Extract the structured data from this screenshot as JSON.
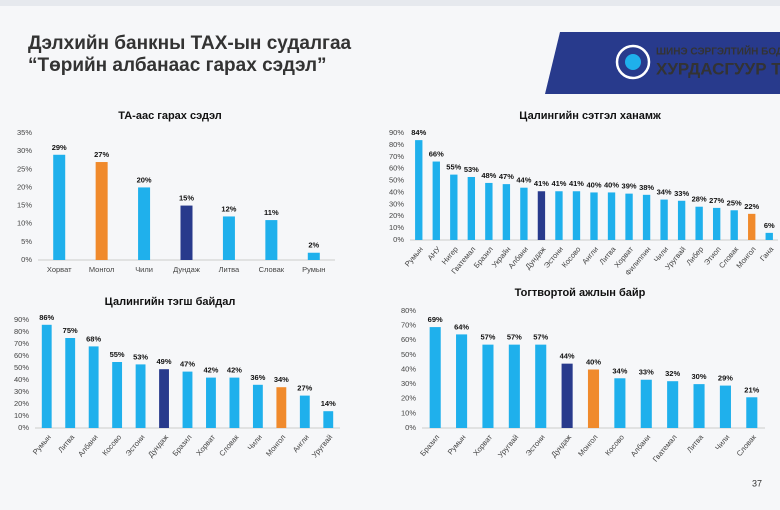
{
  "header": {
    "title": "Дэлхийн банкны ТАХ-ын судалгаа",
    "subtitle": "“Төрийн албанаас гарах сэдэл”",
    "logo_top": "ШИНЭ СЭРГЭЛТИЙН БОДЛО",
    "logo_bottom": "ХУРДАСГУУР ТО"
  },
  "page_number": "37",
  "chart_data": [
    {
      "type": "bar",
      "title": "ТА-аас гарах сэдэл",
      "categories": [
        "Хорват",
        "Монгол",
        "Чили",
        "Дундаж",
        "Литва",
        "Словак",
        "Румын"
      ],
      "values": [
        29,
        27,
        20,
        15,
        12,
        11,
        2
      ],
      "value_labels": [
        "29%",
        "27%",
        "20%",
        "15%",
        "12%",
        "11%",
        "2%"
      ],
      "colors": [
        "#1fb0ec",
        "#f08a2c",
        "#1fb0ec",
        "#283a8c",
        "#1fb0ec",
        "#1fb0ec",
        "#1fb0ec"
      ],
      "ylim": [
        0,
        35
      ],
      "yticks": [
        {
          "value": 0,
          "label": "0%"
        },
        {
          "value": 5,
          "label": "5%"
        },
        {
          "value": 10,
          "label": "10%"
        },
        {
          "value": 15,
          "label": "15%"
        },
        {
          "value": 20,
          "label": "20%"
        },
        {
          "value": 25,
          "label": "25%"
        },
        {
          "value": 30,
          "label": "30%"
        },
        {
          "value": 35,
          "label": "35%"
        }
      ]
    },
    {
      "type": "bar",
      "title": "Цалингийн сэтгэл ханамж",
      "categories": [
        "Румын",
        "АНУ",
        "Нигер",
        "Гватемал",
        "Бразил",
        "Украйн",
        "Албани",
        "Дундаж",
        "Эстони",
        "Косово",
        "Англи",
        "Литва",
        "Хорват",
        "Филиппин",
        "Чили",
        "Уругвай",
        "Либер",
        "Этиоп",
        "Словак",
        "Монгол",
        "Гана"
      ],
      "values": [
        84,
        66,
        55,
        53,
        48,
        47,
        44,
        41,
        41,
        41,
        40,
        40,
        39,
        38,
        34,
        33,
        28,
        27,
        25,
        22,
        6
      ],
      "value_labels": [
        "84%",
        "66%",
        "55%",
        "53%",
        "48%",
        "47%",
        "44%",
        "41%",
        "41%",
        "41%",
        "40%",
        "40%",
        "39%",
        "38%",
        "34%",
        "33%",
        "28%",
        "27%",
        "25%",
        "22%",
        "6%"
      ],
      "colors": [
        "#1fb0ec",
        "#1fb0ec",
        "#1fb0ec",
        "#1fb0ec",
        "#1fb0ec",
        "#1fb0ec",
        "#1fb0ec",
        "#283a8c",
        "#1fb0ec",
        "#1fb0ec",
        "#1fb0ec",
        "#1fb0ec",
        "#1fb0ec",
        "#1fb0ec",
        "#1fb0ec",
        "#1fb0ec",
        "#1fb0ec",
        "#1fb0ec",
        "#1fb0ec",
        "#f08a2c",
        "#1fb0ec"
      ],
      "ylim": [
        0,
        90
      ],
      "yticks": [
        {
          "value": 0,
          "label": "0%"
        },
        {
          "value": 10,
          "label": "10%"
        },
        {
          "value": 20,
          "label": "20%"
        },
        {
          "value": 30,
          "label": "30%"
        },
        {
          "value": 40,
          "label": "40%"
        },
        {
          "value": 50,
          "label": "50%"
        },
        {
          "value": 60,
          "label": "60%"
        },
        {
          "value": 70,
          "label": "70%"
        },
        {
          "value": 80,
          "label": "80%"
        },
        {
          "value": 90,
          "label": "90%"
        }
      ]
    },
    {
      "type": "bar",
      "title": "Цалингийн тэгш байдал",
      "categories": [
        "Румын",
        "Литва",
        "Албани",
        "Косово",
        "Эстони",
        "Дундаж",
        "Бразил",
        "Хорват",
        "Словак",
        "Чили",
        "Монгол",
        "Англи",
        "Уругвай"
      ],
      "values": [
        86,
        75,
        68,
        55,
        53,
        49,
        47,
        42,
        42,
        36,
        34,
        27,
        14
      ],
      "value_labels": [
        "86%",
        "75%",
        "68%",
        "55%",
        "53%",
        "49%",
        "47%",
        "42%",
        "42%",
        "36%",
        "34%",
        "27%",
        "14%"
      ],
      "colors": [
        "#1fb0ec",
        "#1fb0ec",
        "#1fb0ec",
        "#1fb0ec",
        "#1fb0ec",
        "#283a8c",
        "#1fb0ec",
        "#1fb0ec",
        "#1fb0ec",
        "#1fb0ec",
        "#f08a2c",
        "#1fb0ec",
        "#1fb0ec"
      ],
      "ylim": [
        0,
        90
      ],
      "yticks": [
        {
          "value": 0,
          "label": "0%"
        },
        {
          "value": 10,
          "label": "10%"
        },
        {
          "value": 20,
          "label": "20%"
        },
        {
          "value": 30,
          "label": "30%"
        },
        {
          "value": 40,
          "label": "40%"
        },
        {
          "value": 50,
          "label": "50%"
        },
        {
          "value": 60,
          "label": "60%"
        },
        {
          "value": 70,
          "label": "70%"
        },
        {
          "value": 80,
          "label": "80%"
        },
        {
          "value": 90,
          "label": "90%"
        }
      ]
    },
    {
      "type": "bar",
      "title": "Тогтвортой ажлын байр",
      "categories": [
        "Бразил",
        "Румын",
        "Хорват",
        "Уругвай",
        "Эстони",
        "Дундаж",
        "Монгол",
        "Косово",
        "Албани",
        "Гватемал",
        "Литва",
        "Чили",
        "Словак"
      ],
      "values": [
        69,
        64,
        57,
        57,
        57,
        44,
        40,
        34,
        33,
        32,
        30,
        29,
        21
      ],
      "value_labels": [
        "69%",
        "64%",
        "57%",
        "57%",
        "57%",
        "44%",
        "40%",
        "34%",
        "33%",
        "32%",
        "30%",
        "29%",
        "21%"
      ],
      "colors": [
        "#1fb0ec",
        "#1fb0ec",
        "#1fb0ec",
        "#1fb0ec",
        "#1fb0ec",
        "#283a8c",
        "#f08a2c",
        "#1fb0ec",
        "#1fb0ec",
        "#1fb0ec",
        "#1fb0ec",
        "#1fb0ec",
        "#1fb0ec"
      ],
      "ylim": [
        0,
        80
      ],
      "yticks": [
        {
          "value": 0,
          "label": "0%"
        },
        {
          "value": 10,
          "label": "10%"
        },
        {
          "value": 20,
          "label": "20%"
        },
        {
          "value": 30,
          "label": "30%"
        },
        {
          "value": 40,
          "label": "40%"
        },
        {
          "value": 50,
          "label": "50%"
        },
        {
          "value": 60,
          "label": "60%"
        },
        {
          "value": 70,
          "label": "70%"
        },
        {
          "value": 80,
          "label": "80%"
        }
      ]
    }
  ]
}
